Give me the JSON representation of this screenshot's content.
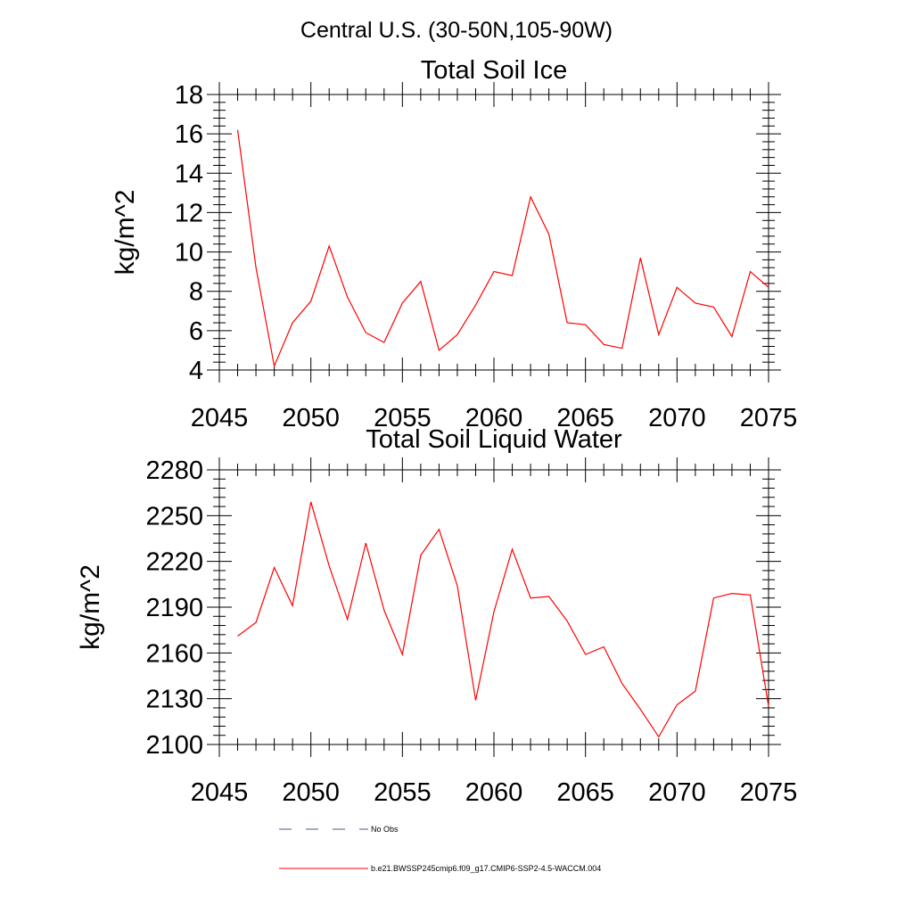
{
  "suptitle": "Central U.S. (30-50N,105-90W)",
  "colors": {
    "model": "#ff0000",
    "obs": "#4a5a8a",
    "axis": "#000000"
  },
  "legend": {
    "obs_label": "No Obs",
    "model_label": "b.e21.BWSSP245cmip6.f09_g17.CMIP6-SSP2-4.5-WACCM.004"
  },
  "chart_data": [
    {
      "type": "line",
      "title": "Total Soil Ice",
      "xlabel": "",
      "ylabel": "kg/m^2",
      "xlim": [
        2045,
        2075
      ],
      "ylim": [
        4,
        18
      ],
      "xticks": [
        2045,
        2050,
        2055,
        2060,
        2065,
        2070,
        2075
      ],
      "yticks": [
        4,
        6,
        8,
        10,
        12,
        14,
        16,
        18
      ],
      "grid": false,
      "x": [
        2046,
        2047,
        2048,
        2049,
        2050,
        2051,
        2052,
        2053,
        2054,
        2055,
        2056,
        2057,
        2058,
        2059,
        2060,
        2061,
        2062,
        2063,
        2064,
        2065,
        2066,
        2067,
        2068,
        2069,
        2070,
        2071,
        2072,
        2073,
        2074,
        2075
      ],
      "series": [
        {
          "name": "b.e21.BWSSP245cmip6.f09_g17.CMIP6-SSP2-4.5-WACCM.004",
          "values": [
            16.2,
            9.2,
            4.2,
            6.4,
            7.5,
            10.3,
            7.7,
            5.9,
            5.4,
            7.4,
            8.5,
            5.0,
            5.8,
            7.3,
            9.0,
            8.8,
            12.8,
            10.9,
            6.4,
            6.3,
            5.3,
            5.1,
            9.7,
            5.8,
            8.2,
            7.4,
            7.2,
            5.7,
            9.0,
            8.2
          ]
        }
      ]
    },
    {
      "type": "line",
      "title": "Total Soil Liquid Water",
      "xlabel": "",
      "ylabel": "kg/m^2",
      "xlim": [
        2045,
        2075
      ],
      "ylim": [
        2100,
        2280
      ],
      "xticks": [
        2045,
        2050,
        2055,
        2060,
        2065,
        2070,
        2075
      ],
      "yticks": [
        2100,
        2130,
        2160,
        2190,
        2220,
        2250,
        2280
      ],
      "grid": false,
      "x": [
        2046,
        2047,
        2048,
        2049,
        2050,
        2051,
        2052,
        2053,
        2054,
        2055,
        2056,
        2057,
        2058,
        2059,
        2060,
        2061,
        2062,
        2063,
        2064,
        2065,
        2066,
        2067,
        2068,
        2069,
        2070,
        2071,
        2072,
        2073,
        2074,
        2075
      ],
      "series": [
        {
          "name": "b.e21.BWSSP245cmip6.f09_g17.CMIP6-SSP2-4.5-WACCM.004",
          "values": [
            2171,
            2180,
            2216,
            2191,
            2259,
            2217,
            2182,
            2232,
            2188,
            2159,
            2224,
            2241,
            2204,
            2129,
            2187,
            2228,
            2196,
            2197,
            2181,
            2159,
            2164,
            2140,
            2123,
            2105,
            2126,
            2135,
            2196,
            2199,
            2198,
            2125
          ]
        }
      ]
    }
  ]
}
